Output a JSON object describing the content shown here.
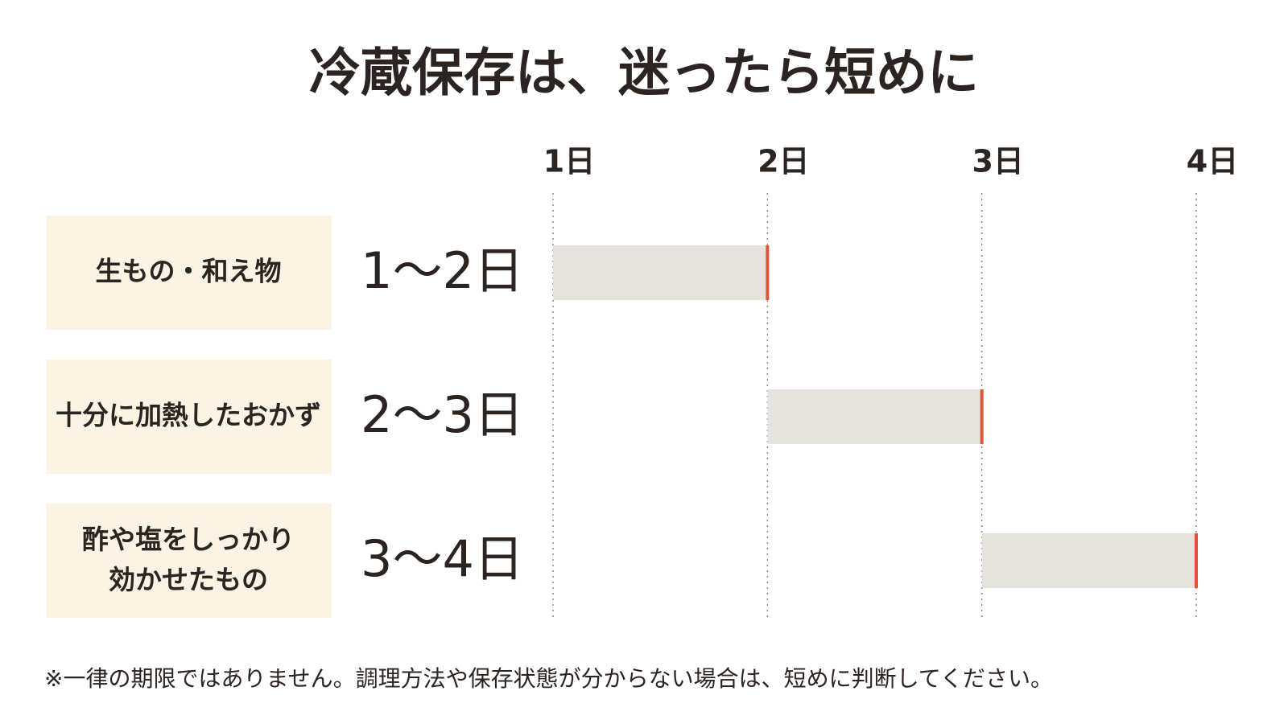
{
  "chart_data": {
    "type": "range",
    "title": "冷蔵保存は、迷ったら短めに",
    "categories": [
      "生もの・和え物",
      "十分に加熱したおかず",
      "酢や塩をしっかり\n効かせたもの"
    ],
    "starts": [
      1,
      2,
      3
    ],
    "values": [
      2,
      3,
      4
    ],
    "value_labels": [
      "1〜2日",
      "2〜3日",
      "3〜4日"
    ],
    "xlim": [
      1,
      4
    ],
    "xticks": [
      {
        "value": 1,
        "label": "1日"
      },
      {
        "value": 2,
        "label": "2日"
      },
      {
        "value": 3,
        "label": "3日"
      },
      {
        "value": 4,
        "label": "4日"
      }
    ],
    "color": "#e6e2de",
    "end_color": "#e0553a",
    "grid": true,
    "note": "※一律の期限ではありません。調理方法や保存状態が分からない場合は、短めに判断してください。"
  }
}
